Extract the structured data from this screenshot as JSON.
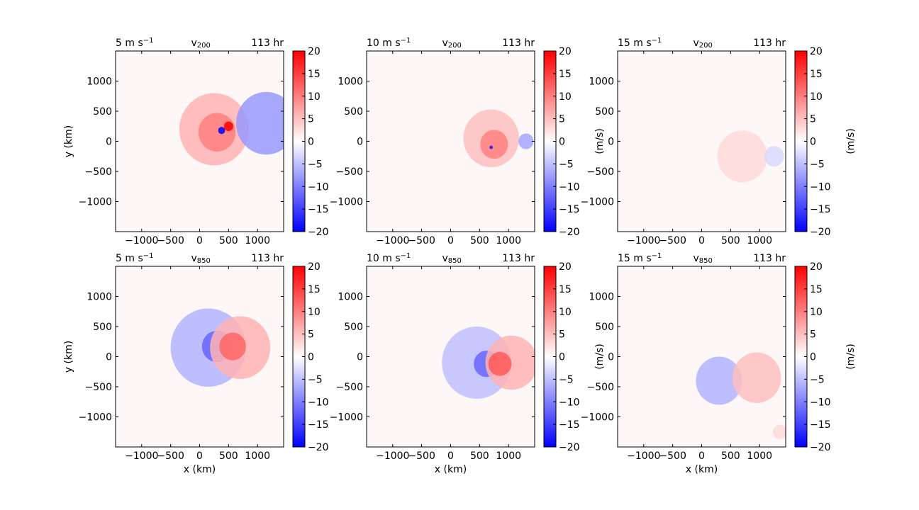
{
  "chart_data": [
    {
      "type": "heatmap",
      "title_left": "5 m s",
      "title_left_sup": "−1",
      "title_center": "v",
      "title_center_sub": "200",
      "title_right": "113 hr",
      "xlabel": "",
      "ylabel": "y (km)",
      "xlim": [
        -1450,
        1450
      ],
      "ylim": [
        -1500,
        1500
      ],
      "xticks": [
        "−1000",
        "−500",
        "0",
        "500",
        "1000"
      ],
      "yticks": [
        "1000",
        "500",
        "0",
        "−500",
        "−1000"
      ],
      "colorbar": {
        "range": [
          -20,
          20
        ],
        "ticks": [
          "20",
          "15",
          "10",
          "5",
          "0",
          "−5",
          "−10",
          "−15",
          "−20"
        ],
        "label": ""
      },
      "features": [
        {
          "kind": "pos",
          "x": 250,
          "y": 200,
          "r": 600,
          "v": 6
        },
        {
          "kind": "pos",
          "x": 300,
          "y": 150,
          "r": 320,
          "v": 10
        },
        {
          "kind": "neg",
          "x": 1150,
          "y": 300,
          "r": 520,
          "v": -8
        },
        {
          "kind": "neg",
          "x": 380,
          "y": 180,
          "r": 60,
          "v": -20
        },
        {
          "kind": "pos",
          "x": 500,
          "y": 250,
          "r": 80,
          "v": 20
        }
      ]
    },
    {
      "type": "heatmap",
      "title_left": "10 m s",
      "title_left_sup": "−1",
      "title_center": "v",
      "title_center_sub": "200",
      "title_right": "113 hr",
      "xlabel": "",
      "ylabel": "",
      "xlim": [
        -1450,
        1450
      ],
      "ylim": [
        -1500,
        1500
      ],
      "xticks": [
        "−1000",
        "−500",
        "0",
        "500",
        "1000"
      ],
      "yticks": [
        "1000",
        "500",
        "0",
        "−500",
        "−1000"
      ],
      "colorbar": {
        "range": [
          -20,
          20
        ],
        "ticks": [
          "20",
          "15",
          "10",
          "5",
          "0",
          "−5",
          "−10",
          "−15",
          "−20"
        ],
        "label": "(m/s)"
      },
      "features": [
        {
          "kind": "pos",
          "x": 700,
          "y": 50,
          "r": 480,
          "v": 5
        },
        {
          "kind": "pos",
          "x": 750,
          "y": -50,
          "r": 240,
          "v": 10
        },
        {
          "kind": "neg",
          "x": 1300,
          "y": 0,
          "r": 130,
          "v": -7
        },
        {
          "kind": "neg",
          "x": 700,
          "y": -100,
          "r": 30,
          "v": -18
        }
      ]
    },
    {
      "type": "heatmap",
      "title_left": "15 m s",
      "title_left_sup": "−1",
      "title_center": "v",
      "title_center_sub": "200",
      "title_right": "113 hr",
      "xlabel": "",
      "ylabel": "",
      "xlim": [
        -1450,
        1450
      ],
      "ylim": [
        -1500,
        1500
      ],
      "xticks": [
        "−1000",
        "−500",
        "0",
        "500",
        "1000"
      ],
      "yticks": [
        "1000",
        "500",
        "0",
        "−500",
        "−1000"
      ],
      "colorbar": {
        "range": [
          -20,
          20
        ],
        "ticks": [
          "20",
          "15",
          "10",
          "5",
          "0",
          "−5",
          "−10",
          "−15",
          "−20"
        ],
        "label": "(m/s)"
      },
      "features": [
        {
          "kind": "pos",
          "x": 700,
          "y": -250,
          "r": 430,
          "v": 3
        },
        {
          "kind": "neg",
          "x": 1250,
          "y": -250,
          "r": 170,
          "v": -3
        }
      ]
    },
    {
      "type": "heatmap",
      "title_left": "5 m s",
      "title_left_sup": "−1",
      "title_center": "v",
      "title_center_sub": "850",
      "title_right": "113 hr",
      "xlabel": "x (km)",
      "ylabel": "y (km)",
      "xlim": [
        -1450,
        1450
      ],
      "ylim": [
        -1500,
        1500
      ],
      "xticks": [
        "−1000",
        "−500",
        "0",
        "500",
        "1000"
      ],
      "yticks": [
        "1000",
        "500",
        "0",
        "−500",
        "−1000"
      ],
      "colorbar": {
        "range": [
          -20,
          20
        ],
        "ticks": [
          "20",
          "15",
          "10",
          "5",
          "0",
          "−5",
          "−10",
          "−15",
          "−20"
        ],
        "label": ""
      },
      "features": [
        {
          "kind": "neg",
          "x": 150,
          "y": 150,
          "r": 650,
          "v": -6
        },
        {
          "kind": "neg",
          "x": 300,
          "y": 170,
          "r": 260,
          "v": -12
        },
        {
          "kind": "pos",
          "x": 700,
          "y": 150,
          "r": 520,
          "v": 6
        },
        {
          "kind": "pos",
          "x": 570,
          "y": 170,
          "r": 230,
          "v": 12
        }
      ]
    },
    {
      "type": "heatmap",
      "title_left": "10 m s",
      "title_left_sup": "−1",
      "title_center": "v",
      "title_center_sub": "850",
      "title_right": "113 hr",
      "xlabel": "x (km)",
      "ylabel": "",
      "xlim": [
        -1450,
        1450
      ],
      "ylim": [
        -1500,
        1500
      ],
      "xticks": [
        "−1000",
        "−500",
        "0",
        "500",
        "1000"
      ],
      "yticks": [
        "1000",
        "500",
        "0",
        "−500",
        "−1000"
      ],
      "colorbar": {
        "range": [
          -20,
          20
        ],
        "ticks": [
          "20",
          "15",
          "10",
          "5",
          "0",
          "−5",
          "−10",
          "−15",
          "−20"
        ],
        "label": "(m/s)"
      },
      "features": [
        {
          "kind": "neg",
          "x": 450,
          "y": -100,
          "r": 600,
          "v": -5
        },
        {
          "kind": "neg",
          "x": 620,
          "y": -120,
          "r": 220,
          "v": -12
        },
        {
          "kind": "pos",
          "x": 1050,
          "y": -100,
          "r": 450,
          "v": 6
        },
        {
          "kind": "pos",
          "x": 850,
          "y": -120,
          "r": 200,
          "v": 13
        }
      ]
    },
    {
      "type": "heatmap",
      "title_left": "15 m s",
      "title_left_sup": "−1",
      "title_center": "v",
      "title_center_sub": "850",
      "title_right": "113 hr",
      "xlabel": "x (km)",
      "ylabel": "",
      "xlim": [
        -1450,
        1450
      ],
      "ylim": [
        -1500,
        1500
      ],
      "xticks": [
        "−1000",
        "−500",
        "0",
        "500",
        "1000"
      ],
      "yticks": [
        "1000",
        "500",
        "0",
        "−500",
        "−1000"
      ],
      "colorbar": {
        "range": [
          -20,
          20
        ],
        "ticks": [
          "20",
          "15",
          "10",
          "5",
          "0",
          "−5",
          "−10",
          "−15",
          "−20"
        ],
        "label": "(m/s)"
      },
      "features": [
        {
          "kind": "neg",
          "x": 300,
          "y": -400,
          "r": 400,
          "v": -6
        },
        {
          "kind": "pos",
          "x": 950,
          "y": -350,
          "r": 420,
          "v": 5
        },
        {
          "kind": "pos",
          "x": 1350,
          "y": -1250,
          "r": 120,
          "v": 3
        }
      ]
    }
  ]
}
